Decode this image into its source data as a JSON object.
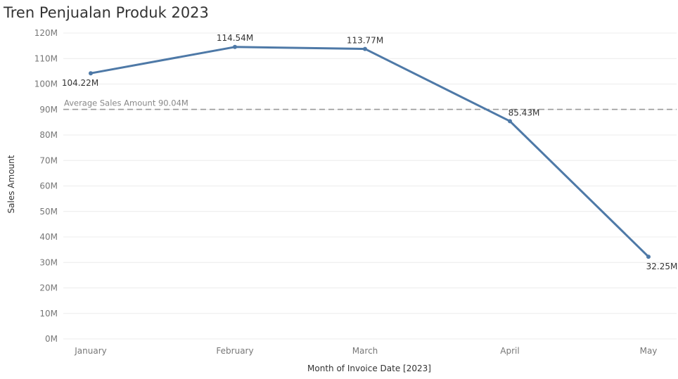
{
  "title": "Tren Penjualan Produk 2023",
  "chart_data": {
    "type": "line",
    "title": "Tren Penjualan Produk 2023",
    "xlabel": "Month of Invoice Date [2023]",
    "ylabel": "Sales Amount",
    "categories": [
      "January",
      "February",
      "March",
      "April",
      "May"
    ],
    "series": [
      {
        "values": [
          104.22,
          114.54,
          113.77,
          85.43,
          32.25
        ],
        "labels": [
          "104.22M",
          "114.54M",
          "113.77M",
          "85.43M",
          "32.25M"
        ],
        "color": "#4e79a7"
      }
    ],
    "y_ticks": [
      {
        "value": 0,
        "label": "0M"
      },
      {
        "value": 10,
        "label": "10M"
      },
      {
        "value": 20,
        "label": "20M"
      },
      {
        "value": 30,
        "label": "30M"
      },
      {
        "value": 40,
        "label": "40M"
      },
      {
        "value": 50,
        "label": "50M"
      },
      {
        "value": 60,
        "label": "60M"
      },
      {
        "value": 70,
        "label": "70M"
      },
      {
        "value": 80,
        "label": "80M"
      },
      {
        "value": 90,
        "label": "90M"
      },
      {
        "value": 100,
        "label": "100M"
      },
      {
        "value": 110,
        "label": "110M"
      },
      {
        "value": 120,
        "label": "120M"
      }
    ],
    "ylim": [
      0,
      120
    ],
    "reference_line": {
      "value": 90.04,
      "label": "Average Sales Amount 90.04M",
      "color": "#999999"
    },
    "grid": true
  }
}
